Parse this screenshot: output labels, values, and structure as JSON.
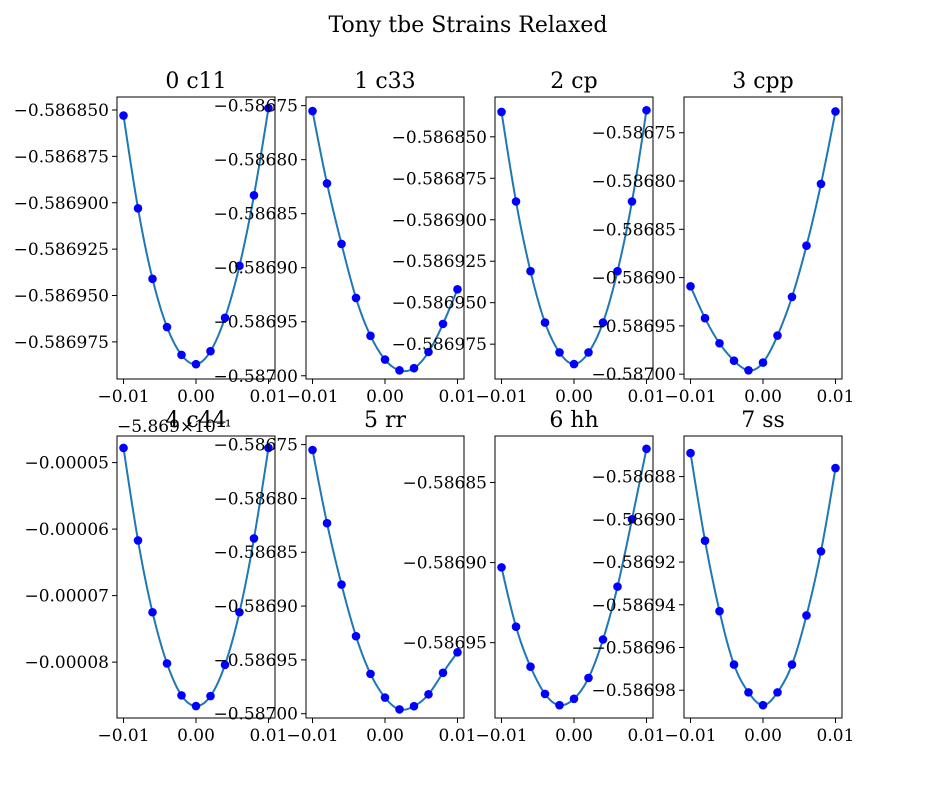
{
  "figure": {
    "title": "Tony tbe Strains Relaxed",
    "colors": {
      "curve": "#1f77b4",
      "points": "#0000ff"
    }
  },
  "chart_data": [
    {
      "type": "line",
      "title": "0 c11",
      "x": [
        -0.01,
        -0.008,
        -0.006,
        -0.004,
        -0.002,
        0,
        0.002,
        0.004,
        0.006,
        0.008,
        0.01
      ],
      "y": [
        -0.586853,
        -0.586903,
        -0.586941,
        -0.586967,
        -0.586982,
        -0.586987,
        -0.58698,
        -0.586962,
        -0.586934,
        -0.586896,
        -0.586849
      ],
      "xlim": [
        -0.0109,
        0.0109
      ],
      "ylim": [
        -0.586995,
        -0.586843
      ],
      "xticks": [
        -0.01,
        0,
        0.01
      ],
      "xticklabels": [
        "−0.01",
        "0.00",
        "0.01"
      ],
      "yticks": [
        -0.58685,
        -0.586875,
        -0.5869,
        -0.586925,
        -0.58695,
        -0.586975
      ],
      "yticklabels": [
        "−0.586850",
        "−0.586875",
        "−0.586900",
        "−0.586925",
        "−0.586950",
        "−0.586975"
      ]
    },
    {
      "type": "line",
      "title": "1 c33",
      "x": [
        -0.01,
        -0.008,
        -0.006,
        -0.004,
        -0.002,
        0,
        0.002,
        0.004,
        0.006,
        0.008,
        0.01
      ],
      "y": [
        -0.586755,
        -0.586822,
        -0.586878,
        -0.586928,
        -0.586963,
        -0.586985,
        -0.586995,
        -0.586993,
        -0.586978,
        -0.586952,
        -0.58692
      ],
      "xlim": [
        -0.0109,
        0.0109
      ],
      "ylim": [
        -0.587003,
        -0.586742
      ],
      "xticks": [
        -0.01,
        0,
        0.01
      ],
      "xticklabels": [
        "−0.01",
        "0.00",
        "0.01"
      ],
      "yticks": [
        -0.58675,
        -0.5868,
        -0.58685,
        -0.5869,
        -0.58695,
        -0.587
      ],
      "yticklabels": [
        "−0.58675",
        "−0.58680",
        "−0.58685",
        "−0.58690",
        "−0.58695",
        "−0.58700"
      ]
    },
    {
      "type": "line",
      "title": "2 cp",
      "x": [
        -0.01,
        -0.008,
        -0.006,
        -0.004,
        -0.002,
        0,
        0.002,
        0.004,
        0.006,
        0.008,
        0.01
      ],
      "y": [
        -0.586835,
        -0.586889,
        -0.586931,
        -0.586962,
        -0.58698,
        -0.586987,
        -0.58698,
        -0.586962,
        -0.586931,
        -0.586889,
        -0.586834
      ],
      "xlim": [
        -0.0109,
        0.0109
      ],
      "ylim": [
        -0.586996,
        -0.586826
      ],
      "xticks": [
        -0.01,
        0,
        0.01
      ],
      "xticklabels": [
        "−0.01",
        "0.00",
        "0.01"
      ],
      "yticks": [
        -0.58685,
        -0.586875,
        -0.5869,
        -0.586925,
        -0.58695,
        -0.586975
      ],
      "yticklabels": [
        "−0.586850",
        "−0.586875",
        "−0.586900",
        "−0.586925",
        "−0.586950",
        "−0.586975"
      ]
    },
    {
      "type": "line",
      "title": "3 cpp",
      "x": [
        -0.01,
        -0.008,
        -0.006,
        -0.004,
        -0.002,
        0,
        0.002,
        0.004,
        0.006,
        0.008,
        0.01
      ],
      "y": [
        -0.586909,
        -0.586942,
        -0.586968,
        -0.586986,
        -0.586996,
        -0.586988,
        -0.58696,
        -0.58692,
        -0.586867,
        -0.586803,
        -0.586728
      ],
      "xlim": [
        -0.0109,
        0.0109
      ],
      "ylim": [
        -0.587005,
        -0.586713
      ],
      "xticks": [
        -0.01,
        0,
        0.01
      ],
      "xticklabels": [
        "−0.01",
        "0.00",
        "0.01"
      ],
      "yticks": [
        -0.58675,
        -0.5868,
        -0.58685,
        -0.5869,
        -0.58695,
        -0.587
      ],
      "yticklabels": [
        "−0.58675",
        "−0.58680",
        "−0.58685",
        "−0.58690",
        "−0.58695",
        "−0.58700"
      ]
    },
    {
      "type": "line",
      "title": "4 c44",
      "offset_label": "−5.869×10⁻¹",
      "x": [
        -0.01,
        -0.008,
        -0.006,
        -0.004,
        -0.002,
        0,
        0.002,
        0.004,
        0.006,
        0.008,
        0.01
      ],
      "y": [
        -4.78e-05,
        -6.17e-05,
        -7.25e-05,
        -8.02e-05,
        -8.5e-05,
        -8.66e-05,
        -8.51e-05,
        -8.04e-05,
        -7.25e-05,
        -6.14e-05,
        -4.78e-05
      ],
      "xlim": [
        -0.0109,
        0.0109
      ],
      "ylim": [
        -8.84e-05,
        -4.6e-05
      ],
      "xticks": [
        -0.01,
        0,
        0.01
      ],
      "xticklabels": [
        "−0.01",
        "0.00",
        "0.01"
      ],
      "yticks": [
        -5e-05,
        -6e-05,
        -7e-05,
        -8e-05
      ],
      "yticklabels": [
        "−0.00005",
        "−0.00006",
        "−0.00007",
        "−0.00008"
      ]
    },
    {
      "type": "line",
      "title": "5 rr",
      "x": [
        -0.01,
        -0.008,
        -0.006,
        -0.004,
        -0.002,
        0,
        0.002,
        0.004,
        0.006,
        0.008,
        0.01
      ],
      "y": [
        -0.586755,
        -0.586823,
        -0.58688,
        -0.586928,
        -0.586963,
        -0.586985,
        -0.586996,
        -0.586993,
        -0.586982,
        -0.586962,
        -0.586943
      ],
      "xlim": [
        -0.0109,
        0.0109
      ],
      "ylim": [
        -0.587004,
        -0.586742
      ],
      "xticks": [
        -0.01,
        0,
        0.01
      ],
      "xticklabels": [
        "−0.01",
        "0.00",
        "0.01"
      ],
      "yticks": [
        -0.58675,
        -0.5868,
        -0.58685,
        -0.5869,
        -0.58695,
        -0.587
      ],
      "yticklabels": [
        "−0.58675",
        "−0.58680",
        "−0.58685",
        "−0.58690",
        "−0.58695",
        "−0.58700"
      ]
    },
    {
      "type": "line",
      "title": "6 hh",
      "x": [
        -0.01,
        -0.008,
        -0.006,
        -0.004,
        -0.002,
        0,
        0.002,
        0.004,
        0.006,
        0.008,
        0.01
      ],
      "y": [
        -0.586903,
        -0.58694,
        -0.586965,
        -0.586982,
        -0.586989,
        -0.586985,
        -0.586972,
        -0.586948,
        -0.586915,
        -0.586873,
        -0.586829
      ],
      "xlim": [
        -0.0109,
        0.0109
      ],
      "ylim": [
        -0.586997,
        -0.586821
      ],
      "xticks": [
        -0.01,
        0,
        0.01
      ],
      "xticklabels": [
        "−0.01",
        "0.00",
        "0.01"
      ],
      "yticks": [
        -0.58685,
        -0.5869,
        -0.58695
      ],
      "yticklabels": [
        "−0.58685",
        "−0.58690",
        "−0.58695"
      ]
    },
    {
      "type": "line",
      "title": "7 ss",
      "x": [
        -0.01,
        -0.008,
        -0.006,
        -0.004,
        -0.002,
        0,
        0.002,
        0.004,
        0.006,
        0.008,
        0.01
      ],
      "y": [
        -0.586869,
        -0.58691,
        -0.586943,
        -0.586968,
        -0.586981,
        -0.586987,
        -0.586981,
        -0.586968,
        -0.586945,
        -0.586915,
        -0.586876
      ],
      "xlim": [
        -0.0109,
        0.0109
      ],
      "ylim": [
        -0.586993,
        -0.586861
      ],
      "xticks": [
        -0.01,
        0,
        0.01
      ],
      "xticklabels": [
        "−0.01",
        "0.00",
        "0.01"
      ],
      "yticks": [
        -0.58688,
        -0.5869,
        -0.58692,
        -0.58694,
        -0.58696,
        -0.58698
      ],
      "yticklabels": [
        "−0.58688",
        "−0.58690",
        "−0.58692",
        "−0.58694",
        "−0.58696",
        "−0.58698"
      ]
    }
  ]
}
